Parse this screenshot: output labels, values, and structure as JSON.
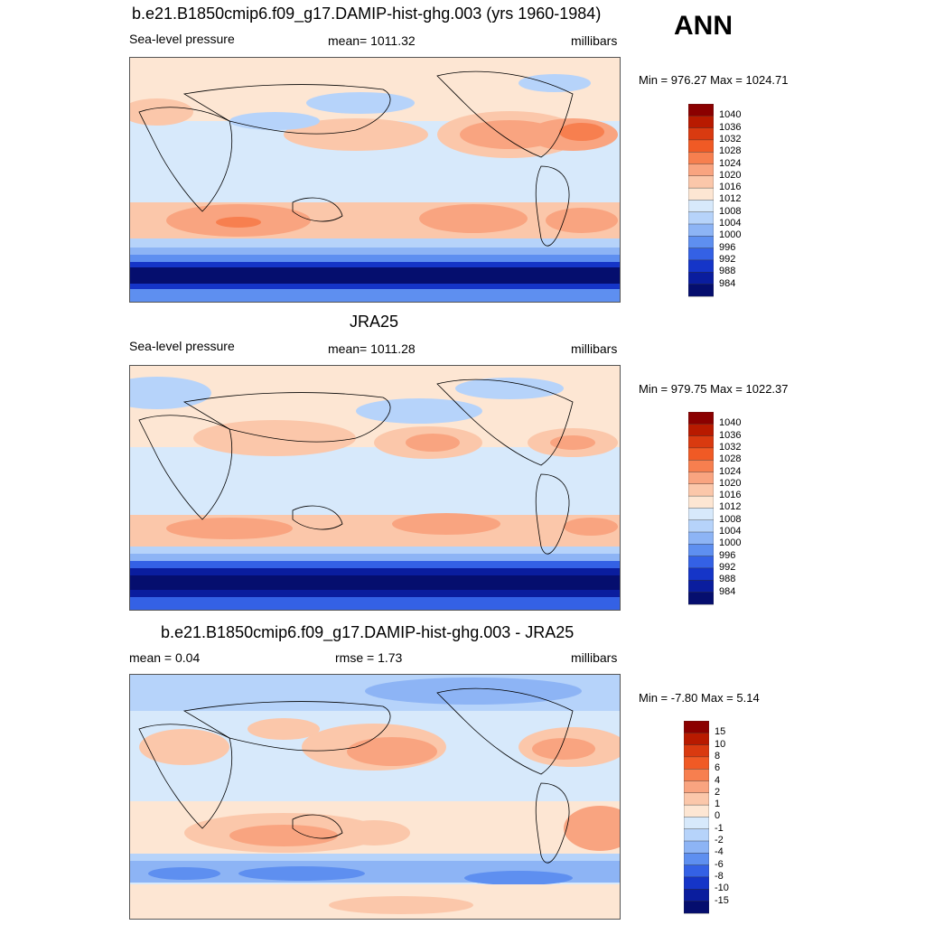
{
  "season": "ANN",
  "panels": [
    {
      "title": "b.e21.B1850cmip6.f09_g17.DAMIP-hist-ghg.003 (yrs 1960-1984)",
      "left_label": "Sea-level pressure",
      "center_label": "mean= 1011.32",
      "right_label": "millibars",
      "minmax": "Min = 976.27 Max = 1024.71"
    },
    {
      "title": "JRA25",
      "left_label": "Sea-level pressure",
      "center_label": "mean= 1011.28",
      "right_label": "millibars",
      "minmax": "Min = 979.75 Max = 1022.37"
    },
    {
      "title": "b.e21.B1850cmip6.f09_g17.DAMIP-hist-ghg.003 - JRA25",
      "left_label": "mean =   0.04",
      "center_label": "rmse =   1.73",
      "right_label": "millibars",
      "minmax": "Min =  -7.80 Max =   5.14"
    }
  ],
  "colorbars": {
    "field_levels": [
      "1040",
      "1036",
      "1032",
      "1028",
      "1024",
      "1020",
      "1016",
      "1012",
      "1008",
      "1004",
      "1000",
      "996",
      "992",
      "988",
      "984"
    ],
    "diff_levels": [
      "15",
      "10",
      "8",
      "6",
      "4",
      "2",
      "1",
      "0",
      "-1",
      "-2",
      "-4",
      "-6",
      "-8",
      "-10",
      "-15"
    ],
    "colors": [
      "#8b0000",
      "#b81a00",
      "#d93a10",
      "#f05a25",
      "#f77f4f",
      "#f9a480",
      "#fbc7aa",
      "#fde6d3",
      "#d7e9fb",
      "#b6d3fa",
      "#8db4f5",
      "#5e8ff0",
      "#3461e5",
      "#1535c8",
      "#0a1d9e",
      "#050e6e"
    ]
  }
}
